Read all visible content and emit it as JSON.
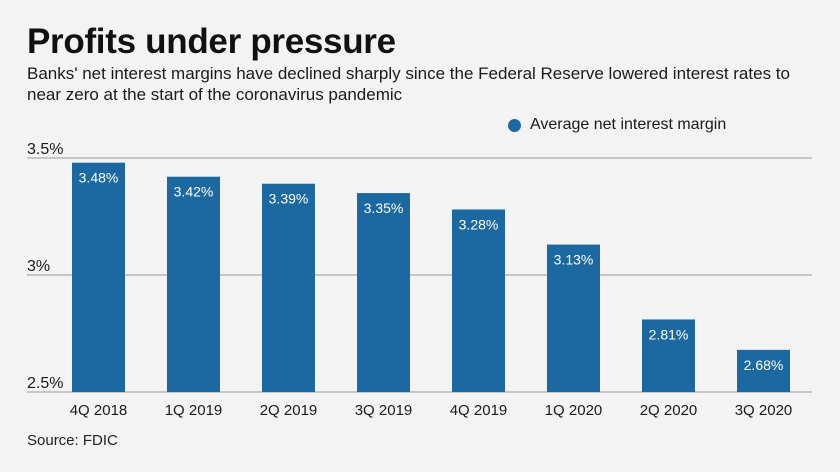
{
  "chart_data": {
    "type": "bar",
    "title": "Profits under pressure",
    "subtitle": "Banks' net interest margins have declined sharply since the Federal Reserve lowered interest rates to near zero at the start of the coronavirus pandemic",
    "categories": [
      "4Q 2018",
      "1Q 2019",
      "2Q 2019",
      "3Q 2019",
      "4Q 2019",
      "1Q 2020",
      "2Q 2020",
      "3Q 2020"
    ],
    "series": [
      {
        "name": "Average net interest margin",
        "values": [
          3.48,
          3.42,
          3.39,
          3.35,
          3.28,
          3.13,
          2.81,
          2.68
        ],
        "labels": [
          "3.48%",
          "3.42%",
          "3.39%",
          "3.35%",
          "3.28%",
          "3.13%",
          "2.81%",
          "2.68%"
        ]
      }
    ],
    "yticks": [
      3.5,
      3.0,
      2.5
    ],
    "ytick_labels": [
      "3.5%",
      "3%",
      "2.5%"
    ],
    "ylim": [
      2.5,
      3.5
    ],
    "xlabel": "",
    "ylabel": "",
    "grid": true,
    "legend_position": "top-right",
    "colors": {
      "bar": "#1b69a0",
      "grid": "#9a9a9a",
      "background": "#f3f3f3"
    },
    "source": "Source: FDIC"
  }
}
